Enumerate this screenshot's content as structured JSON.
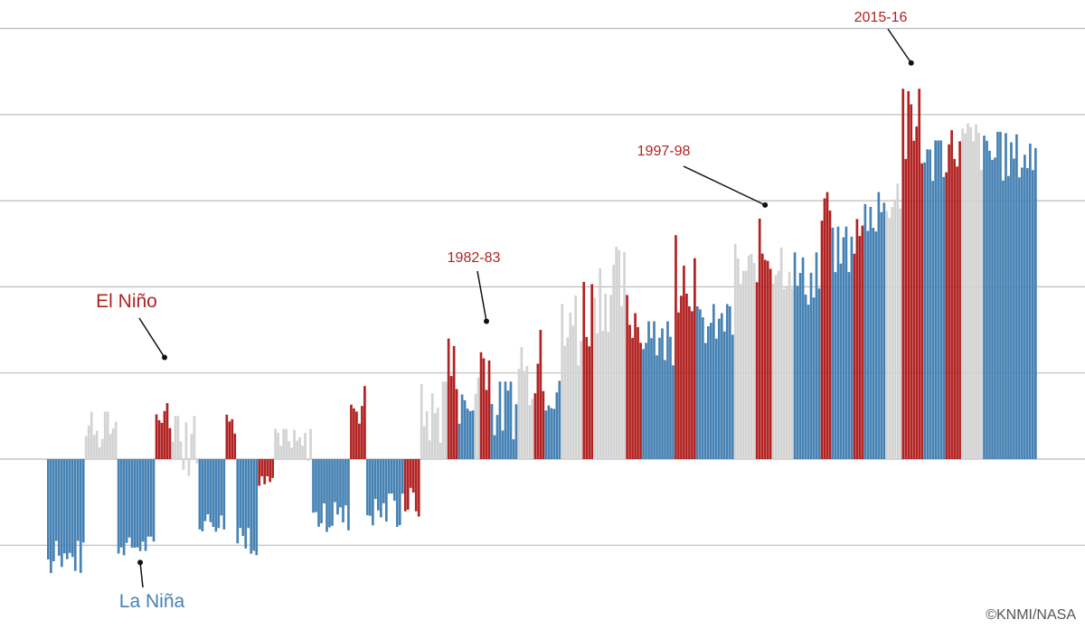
{
  "chart_data": {
    "type": "bar",
    "title": "",
    "xlabel": "",
    "ylabel": "",
    "ylim": [
      -1.65,
      5.3
    ],
    "gridlines": [
      -1,
      0,
      1,
      2,
      3,
      4,
      5
    ],
    "grid": true,
    "legend": "none",
    "colors": {
      "el_nino": "#b22222",
      "la_nina": "#4682b4",
      "neutral": "#d3d3d3",
      "grid": "#bbbbbb"
    },
    "period_index_range": [
      0,
      366
    ],
    "periods": [
      {
        "phase": "la_nina",
        "start": 0,
        "end": 14,
        "top": -0.95,
        "min": -1.6
      },
      {
        "phase": "neutral",
        "start": 14,
        "end": 26,
        "top": 0.55,
        "min": -0.2
      },
      {
        "phase": "la_nina",
        "start": 26,
        "end": 40,
        "top": -0.9,
        "min": -1.25
      },
      {
        "phase": "el_nino",
        "start": 40,
        "end": 46,
        "top": 0.65,
        "min": 0.2
      },
      {
        "phase": "neutral",
        "start": 46,
        "end": 56,
        "top": 0.5,
        "min": -0.6
      },
      {
        "phase": "la_nina",
        "start": 56,
        "end": 66,
        "top": -0.6,
        "min": -1.0
      },
      {
        "phase": "el_nino",
        "start": 66,
        "end": 70,
        "top": 0.65,
        "min": 0.1
      },
      {
        "phase": "la_nina",
        "start": 70,
        "end": 78,
        "top": -0.8,
        "min": -1.3
      },
      {
        "phase": "el_nino",
        "start": 78,
        "end": 84,
        "top": -0.2,
        "min": -0.5
      },
      {
        "phase": "neutral",
        "start": 84,
        "end": 98,
        "top": 0.35,
        "min": -0.25
      },
      {
        "phase": "la_nina",
        "start": 98,
        "end": 112,
        "top": -0.5,
        "min": -1.05
      },
      {
        "phase": "el_nino",
        "start": 112,
        "end": 118,
        "top": 0.9,
        "min": 0.1
      },
      {
        "phase": "la_nina",
        "start": 118,
        "end": 132,
        "top": -0.4,
        "min": -1.05
      },
      {
        "phase": "el_nino",
        "start": 132,
        "end": 138,
        "top": -0.3,
        "min": -0.95
      },
      {
        "phase": "neutral",
        "start": 138,
        "end": 148,
        "top": 0.9,
        "min": -0.3
      },
      {
        "phase": "el_nino",
        "start": 148,
        "end": 152,
        "top": 1.4,
        "min": 0.2
      },
      {
        "phase": "la_nina",
        "start": 152,
        "end": 158,
        "top": 0.75,
        "min": 0.2
      },
      {
        "phase": "neutral",
        "start": 158,
        "end": 160,
        "top": 1.2,
        "min": 0.3
      },
      {
        "phase": "el_nino",
        "start": 160,
        "end": 164,
        "top": 1.55,
        "min": 0.4
      },
      {
        "phase": "la_nina",
        "start": 164,
        "end": 174,
        "top": 0.9,
        "min": -0.15
      },
      {
        "phase": "neutral",
        "start": 174,
        "end": 180,
        "top": 1.3,
        "min": 0.25
      },
      {
        "phase": "el_nino",
        "start": 180,
        "end": 184,
        "top": 1.5,
        "min": 0.3
      },
      {
        "phase": "la_nina",
        "start": 184,
        "end": 190,
        "top": 1.4,
        "min": 0.0
      },
      {
        "phase": "neutral",
        "start": 190,
        "end": 198,
        "top": 1.9,
        "min": 0.5
      },
      {
        "phase": "el_nino",
        "start": 198,
        "end": 202,
        "top": 2.3,
        "min": 0.6
      },
      {
        "phase": "neutral",
        "start": 202,
        "end": 214,
        "top": 2.5,
        "min": 0.9
      },
      {
        "phase": "el_nino",
        "start": 214,
        "end": 220,
        "top": 2.0,
        "min": 0.9
      },
      {
        "phase": "la_nina",
        "start": 220,
        "end": 232,
        "top": 1.6,
        "min": 0.8
      },
      {
        "phase": "el_nino",
        "start": 232,
        "end": 240,
        "top": 2.6,
        "min": 1.2
      },
      {
        "phase": "la_nina",
        "start": 240,
        "end": 254,
        "top": 1.8,
        "min": 1.0
      },
      {
        "phase": "neutral",
        "start": 254,
        "end": 262,
        "top": 2.5,
        "min": 1.4
      },
      {
        "phase": "el_nino",
        "start": 262,
        "end": 268,
        "top": 2.8,
        "min": 1.6
      },
      {
        "phase": "neutral",
        "start": 268,
        "end": 276,
        "top": 2.7,
        "min": 1.5
      },
      {
        "phase": "la_nina",
        "start": 276,
        "end": 286,
        "top": 2.4,
        "min": 1.4
      },
      {
        "phase": "el_nino",
        "start": 286,
        "end": 290,
        "top": 3.1,
        "min": 1.9
      },
      {
        "phase": "la_nina",
        "start": 290,
        "end": 298,
        "top": 2.7,
        "min": 1.8
      },
      {
        "phase": "el_nino",
        "start": 298,
        "end": 302,
        "top": 2.9,
        "min": 2.0
      },
      {
        "phase": "la_nina",
        "start": 302,
        "end": 310,
        "top": 3.1,
        "min": 2.3
      },
      {
        "phase": "neutral",
        "start": 310,
        "end": 316,
        "top": 3.2,
        "min": 2.5
      },
      {
        "phase": "el_nino",
        "start": 316,
        "end": 324,
        "top": 4.3,
        "min": 2.7
      },
      {
        "phase": "la_nina",
        "start": 324,
        "end": 332,
        "top": 3.7,
        "min": 2.9
      },
      {
        "phase": "el_nino",
        "start": 332,
        "end": 338,
        "top": 3.9,
        "min": 3.0
      },
      {
        "phase": "neutral",
        "start": 338,
        "end": 346,
        "top": 4.0,
        "min": 2.9
      },
      {
        "phase": "la_nina",
        "start": 346,
        "end": 366,
        "top": 3.8,
        "min": 2.9
      }
    ],
    "annotations": [
      {
        "label": "El Niño",
        "phase": "el_nino",
        "x": 43,
        "y": 1.18
      },
      {
        "label": "La Niña",
        "phase": "la_nina",
        "x": 34,
        "y": -1.2
      },
      {
        "label": "1982-83",
        "phase": "el_nino",
        "x": 162,
        "y": 1.6
      },
      {
        "label": "1997-98",
        "phase": "el_nino",
        "x": 265,
        "y": 2.95
      },
      {
        "label": "2015-16",
        "phase": "el_nino",
        "x": 319,
        "y": 4.6
      }
    ]
  },
  "credit": "©KNMI/NASA"
}
